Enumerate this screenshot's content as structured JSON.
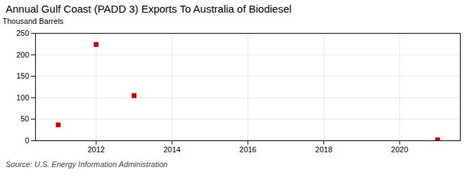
{
  "chart_data": {
    "type": "scatter",
    "title": "Annual Gulf Coast (PADD 3) Exports To Australia of Biodiesel",
    "ylabel": "Thousand Barrels",
    "source": "Source: U.S. Energy Information Administration",
    "x": [
      2011,
      2012,
      2013,
      2021
    ],
    "values": [
      37,
      224,
      105,
      2
    ],
    "color": "#cc0000",
    "marker": "square",
    "xlim": [
      2010.4,
      2021.6
    ],
    "ylim": [
      0,
      250
    ],
    "xticks": [
      2012,
      2014,
      2016,
      2018,
      2020
    ],
    "yticks": [
      0,
      50,
      100,
      150,
      200,
      250
    ],
    "grid": true
  }
}
